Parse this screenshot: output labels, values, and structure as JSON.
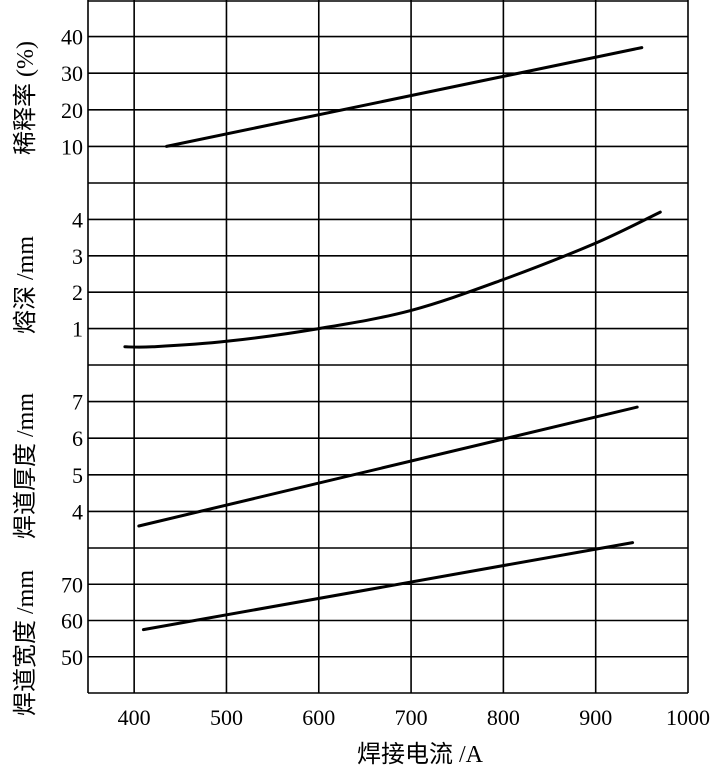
{
  "chart_data": {
    "type": "line",
    "xlabel": "焊接电流 /A",
    "x_ticks": [
      400,
      500,
      600,
      700,
      800,
      900,
      1000
    ],
    "xlim": [
      350,
      1000
    ],
    "grid": true,
    "panels": [
      {
        "ylabel": "稀释率 (%)",
        "ylim": [
          0,
          50
        ],
        "y_ticks": [
          10,
          20,
          30,
          40
        ],
        "series": [
          {
            "x": [
              435,
              950
            ],
            "y": [
              10,
              37
            ]
          }
        ]
      },
      {
        "ylabel": "熔深 /mm",
        "ylim": [
          0,
          5
        ],
        "y_ticks": [
          1,
          2,
          3,
          4
        ],
        "series": [
          {
            "x": [
              390,
              420,
              500,
              600,
              700,
              800,
              900,
              970
            ],
            "y": [
              0.5,
              0.5,
              0.65,
              1.0,
              1.5,
              2.35,
              3.35,
              4.2
            ]
          }
        ]
      },
      {
        "ylabel": "焊道厚度 /mm",
        "ylim": [
          3,
          8
        ],
        "y_ticks": [
          4,
          5,
          6,
          7
        ],
        "series": [
          {
            "x": [
              405,
              945
            ],
            "y": [
              3.6,
              6.85
            ]
          }
        ]
      },
      {
        "ylabel": "焊道宽度 /mm",
        "ylim": [
          40,
          80
        ],
        "y_ticks": [
          50,
          60,
          70
        ],
        "series": [
          {
            "x": [
              410,
              940
            ],
            "y": [
              57.5,
              81.5
            ]
          }
        ]
      }
    ]
  }
}
